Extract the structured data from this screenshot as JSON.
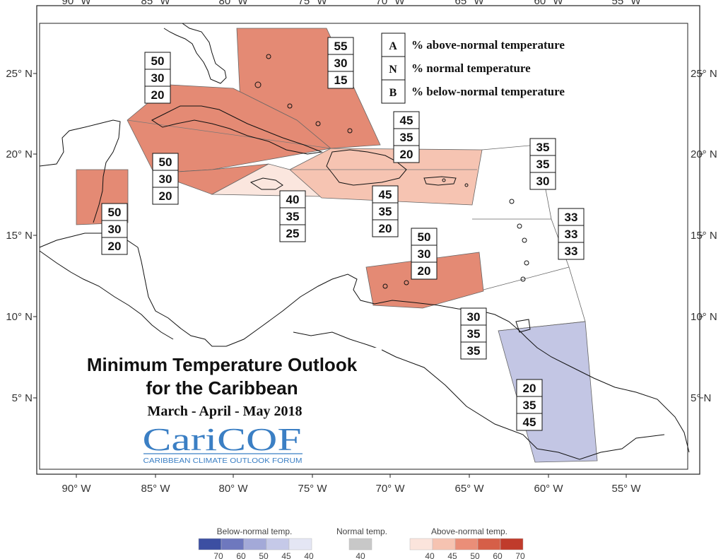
{
  "title": {
    "line1": "Minimum Temperature Outlook",
    "line2": "for the Caribbean",
    "period": "March - April - May 2018"
  },
  "logo": {
    "name": "CariCOF",
    "subtitle": "CARIBBEAN CLIMATE OUTLOOK FORUM"
  },
  "axes": {
    "lon_labels": [
      "90° W",
      "85° W",
      "80° W",
      "75° W",
      "70° W",
      "65° W",
      "60° W",
      "55° W"
    ],
    "lat_labels": [
      "25° N",
      "20° N",
      "15° N",
      "10° N",
      "5° N"
    ]
  },
  "key": {
    "items": [
      {
        "letter": "A",
        "text": "% above-normal temperature"
      },
      {
        "letter": "N",
        "text": "% normal temperature"
      },
      {
        "letter": "B",
        "text": "% below-normal temperature"
      }
    ]
  },
  "regions": [
    {
      "id": "bahamas",
      "above": "55",
      "normal": "30",
      "below": "15",
      "color": "#e48a74"
    },
    {
      "id": "cuba",
      "above": "50",
      "normal": "30",
      "below": "20",
      "color": "#e48a74"
    },
    {
      "id": "cayman-jamaica-west",
      "above": "50",
      "normal": "30",
      "below": "20",
      "color": "#e48a74"
    },
    {
      "id": "belize",
      "above": "50",
      "normal": "30",
      "below": "20",
      "color": "#e48a74"
    },
    {
      "id": "jamaica",
      "above": "40",
      "normal": "35",
      "below": "25",
      "color": "#fbe6de"
    },
    {
      "id": "hispaniola-north",
      "above": "45",
      "normal": "35",
      "below": "20",
      "color": "#f6c4b2"
    },
    {
      "id": "hispaniola-south",
      "above": "45",
      "normal": "35",
      "below": "20",
      "color": "#f6c4b2"
    },
    {
      "id": "northern-leewards",
      "above": "35",
      "normal": "35",
      "below": "30",
      "color": "#ffffff"
    },
    {
      "id": "windwards",
      "above": "33",
      "normal": "33",
      "below": "33",
      "color": "#ffffff"
    },
    {
      "id": "abc-islands",
      "above": "50",
      "normal": "30",
      "below": "20",
      "color": "#e48a74"
    },
    {
      "id": "trinidad",
      "above": "30",
      "normal": "35",
      "below": "35",
      "color": "#ffffff"
    },
    {
      "id": "guianas",
      "above": "20",
      "normal": "35",
      "below": "45",
      "color": "#c3c6e4"
    }
  ],
  "colorbar": {
    "below": {
      "title": "Below-normal temp.",
      "ticks": [
        "70",
        "60",
        "50",
        "45",
        "40"
      ],
      "colors": [
        "#3c4fa2",
        "#6e78be",
        "#a3a9d8",
        "#c5c9e8",
        "#e4e6f4"
      ]
    },
    "normal": {
      "title": "Normal temp.",
      "ticks": [
        "40"
      ],
      "colors": [
        "#c8c8c8"
      ]
    },
    "above": {
      "title": "Above-normal temp.",
      "ticks": [
        "40",
        "45",
        "50",
        "60",
        "70"
      ],
      "colors": [
        "#fbe4dc",
        "#f6c3b1",
        "#ea8e78",
        "#d65f48",
        "#c03b2b"
      ]
    }
  }
}
